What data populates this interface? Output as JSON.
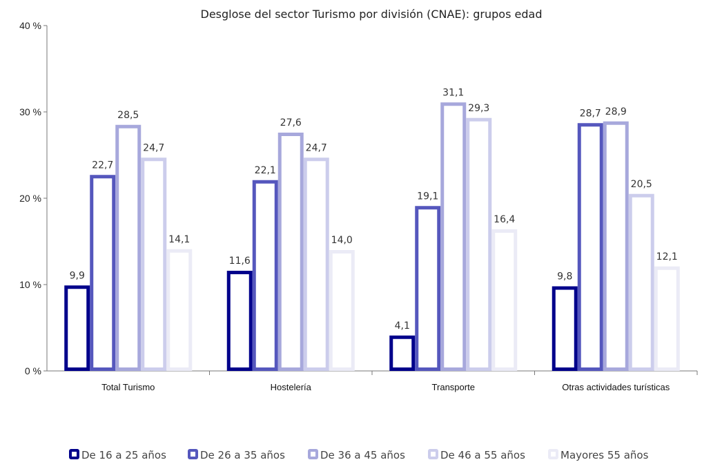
{
  "chart_data": {
    "type": "bar",
    "title": "Desglose del sector Turismo por división (CNAE): grupos edad",
    "xlabel": "",
    "ylabel": "",
    "ylim": [
      0,
      40
    ],
    "yticks": [
      0,
      10,
      20,
      30,
      40
    ],
    "ytick_labels": [
      "0 %",
      "10 %",
      "20 %",
      "30 %",
      "40 %"
    ],
    "grid": false,
    "legend_position": "bottom",
    "categories": [
      "Total Turismo",
      "Hostelería",
      "Transporte",
      "Otras actividades turísticas"
    ],
    "series": [
      {
        "name": "De 16 a 25 años",
        "color": "#00008b",
        "values": [
          9.9,
          11.6,
          4.1,
          9.8
        ],
        "labels": [
          "9,9",
          "11,6",
          "4,1",
          "9,8"
        ]
      },
      {
        "name": "De 26 a 35 años",
        "color": "#5557bd",
        "values": [
          22.7,
          22.1,
          19.1,
          28.7
        ],
        "labels": [
          "22,7",
          "22,1",
          "19,1",
          "28,7"
        ]
      },
      {
        "name": "De 36 a 45 años",
        "color": "#a7a8dc",
        "values": [
          28.5,
          27.6,
          31.1,
          28.9
        ],
        "labels": [
          "28,5",
          "27,6",
          "31,1",
          "28,9"
        ]
      },
      {
        "name": "De 46 a 55 años",
        "color": "#cccdec",
        "values": [
          24.7,
          24.7,
          29.3,
          20.5
        ],
        "labels": [
          "24,7",
          "24,7",
          "29,3",
          "20,5"
        ]
      },
      {
        "name": "Mayores 55 años",
        "color": "#ebebf6",
        "values": [
          14.1,
          14.0,
          16.4,
          12.1
        ],
        "labels": [
          "14,1",
          "14,0",
          "16,4",
          "12,1"
        ]
      }
    ]
  }
}
